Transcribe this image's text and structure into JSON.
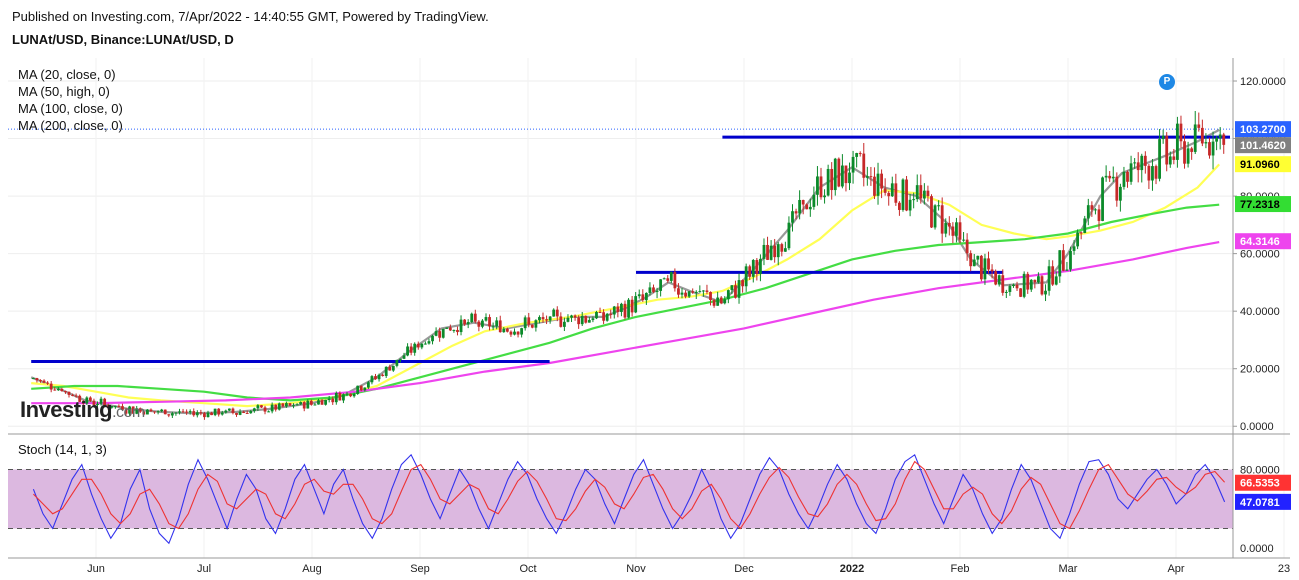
{
  "header": {
    "published": "Published on Investing.com, 7/Apr/2022 - 14:40:55 GMT, Powered by TradingView.",
    "symbol": "LUNAt/USD, Binance:LUNAt/USD, D"
  },
  "legend": {
    "ma": [
      "MA (20, close, 0)",
      "MA (50, high, 0)",
      "MA (100, close, 0)",
      "MA (200, close, 0)"
    ],
    "stoch": "Stoch (14, 1, 3)"
  },
  "logo": {
    "main": "Investing",
    "suffix": ".com"
  },
  "badge": {
    "label": "P"
  },
  "chart_data": [
    {
      "type": "candlestick",
      "x_months": [
        "Jun",
        "Jul",
        "Aug",
        "Sep",
        "Oct",
        "Nov",
        "Dec",
        "2022",
        "Feb",
        "Mar",
        "Apr",
        "23"
      ],
      "y_ticks": [
        "120.0000",
        "100.0000",
        "80.0000",
        "60.0000",
        "40.0000",
        "20.0000",
        "0.0000"
      ],
      "ylim": [
        -2,
        128
      ],
      "price_labels": [
        {
          "text": "103.2700",
          "value": 103.27,
          "color": "#2962ff"
        },
        {
          "text": "101.4620",
          "value": 101.462,
          "color": "#808080"
        },
        {
          "text": "91.0960",
          "value": 91.096,
          "color": "#ffff33"
        },
        {
          "text": "77.2318",
          "value": 77.2318,
          "color": "#33dd33"
        },
        {
          "text": "64.3146",
          "value": 64.3146,
          "color": "#ee44ee"
        }
      ],
      "last_price": 103.27,
      "colors": {
        "up": "#0b8a2a",
        "down": "#c62828",
        "trendline": "#0000cc"
      },
      "trendlines": [
        {
          "from": [
            -0.6,
            22.5
          ],
          "to": [
            4.2,
            22.5
          ]
        },
        {
          "from": [
            5.0,
            53.5
          ],
          "to": [
            8.4,
            53.5
          ]
        },
        {
          "from": [
            5.8,
            100.5
          ],
          "to": [
            10.5,
            100.5
          ]
        }
      ],
      "series": [
        {
          "name": "MA (20, close, 0)",
          "color": "#999999",
          "points": [
            [
              -0.6,
              17
            ],
            [
              -0.4,
              14
            ],
            [
              -0.1,
              9
            ],
            [
              0.3,
              6
            ],
            [
              0.6,
              5
            ],
            [
              0.9,
              4.5
            ],
            [
              1.3,
              5
            ],
            [
              1.6,
              6
            ],
            [
              2.0,
              8
            ],
            [
              2.3,
              11
            ],
            [
              2.6,
              17
            ],
            [
              2.9,
              26
            ],
            [
              3.2,
              34
            ],
            [
              3.5,
              36
            ],
            [
              3.8,
              34
            ],
            [
              4.1,
              36
            ],
            [
              4.4,
              38
            ],
            [
              4.7,
              38
            ],
            [
              4.9,
              41
            ],
            [
              5.1,
              45
            ],
            [
              5.3,
              50
            ],
            [
              5.5,
              47
            ],
            [
              5.8,
              43
            ],
            [
              6.1,
              55
            ],
            [
              6.4,
              68
            ],
            [
              6.7,
              83
            ],
            [
              7.0,
              90
            ],
            [
              7.3,
              83
            ],
            [
              7.6,
              80
            ],
            [
              7.9,
              70
            ],
            [
              8.1,
              58
            ],
            [
              8.4,
              49
            ],
            [
              8.8,
              50
            ],
            [
              9.0,
              60
            ],
            [
              9.3,
              80
            ],
            [
              9.5,
              88
            ],
            [
              9.7,
              91
            ],
            [
              9.9,
              94
            ],
            [
              10.2,
              99
            ],
            [
              10.4,
              103
            ]
          ]
        },
        {
          "name": "MA (50, high, 0)",
          "color": "#ffff55",
          "points": [
            [
              -0.6,
              15
            ],
            [
              -0.3,
              14
            ],
            [
              0.0,
              12
            ],
            [
              0.3,
              10
            ],
            [
              0.6,
              9
            ],
            [
              1.0,
              8
            ],
            [
              1.4,
              7
            ],
            [
              1.8,
              8
            ],
            [
              2.2,
              10
            ],
            [
              2.6,
              14
            ],
            [
              3.0,
              22
            ],
            [
              3.3,
              28
            ],
            [
              3.6,
              33
            ],
            [
              4.0,
              36
            ],
            [
              4.4,
              38
            ],
            [
              4.8,
              41
            ],
            [
              5.2,
              44
            ],
            [
              5.5,
              45
            ],
            [
              5.8,
              47
            ],
            [
              6.1,
              52
            ],
            [
              6.4,
              58
            ],
            [
              6.7,
              65
            ],
            [
              7.0,
              75
            ],
            [
              7.3,
              82
            ],
            [
              7.6,
              81
            ],
            [
              7.9,
              77
            ],
            [
              8.2,
              70
            ],
            [
              8.5,
              67
            ],
            [
              8.8,
              65
            ],
            [
              9.0,
              66
            ],
            [
              9.3,
              68
            ],
            [
              9.6,
              71
            ],
            [
              9.9,
              76
            ],
            [
              10.2,
              83
            ],
            [
              10.4,
              91
            ]
          ]
        },
        {
          "name": "MA (100, close, 0)",
          "color": "#44dd44",
          "points": [
            [
              -0.6,
              13
            ],
            [
              -0.2,
              14
            ],
            [
              0.2,
              14
            ],
            [
              0.6,
              13
            ],
            [
              1.0,
              12
            ],
            [
              1.4,
              10
            ],
            [
              1.8,
              9
            ],
            [
              2.2,
              10
            ],
            [
              2.6,
              13
            ],
            [
              3.0,
              17
            ],
            [
              3.4,
              21
            ],
            [
              3.8,
              25
            ],
            [
              4.2,
              29
            ],
            [
              4.6,
              34
            ],
            [
              5.0,
              38
            ],
            [
              5.4,
              41
            ],
            [
              5.8,
              44
            ],
            [
              6.2,
              48
            ],
            [
              6.6,
              53
            ],
            [
              7.0,
              58
            ],
            [
              7.4,
              61
            ],
            [
              7.8,
              63
            ],
            [
              8.2,
              64
            ],
            [
              8.6,
              65
            ],
            [
              9.0,
              67
            ],
            [
              9.4,
              71
            ],
            [
              9.8,
              74
            ],
            [
              10.1,
              76
            ],
            [
              10.4,
              77
            ]
          ]
        },
        {
          "name": "MA (200, close, 0)",
          "color": "#ee44ee",
          "points": [
            [
              -0.6,
              8
            ],
            [
              0.0,
              8
            ],
            [
              0.6,
              8.5
            ],
            [
              1.2,
              9
            ],
            [
              1.8,
              10
            ],
            [
              2.4,
              12
            ],
            [
              3.0,
              15
            ],
            [
              3.6,
              19
            ],
            [
              4.2,
              22
            ],
            [
              4.8,
              26
            ],
            [
              5.4,
              30
            ],
            [
              6.0,
              34
            ],
            [
              6.6,
              39
            ],
            [
              7.2,
              44
            ],
            [
              7.8,
              48
            ],
            [
              8.4,
              51
            ],
            [
              9.0,
              54
            ],
            [
              9.6,
              58
            ],
            [
              10.1,
              62
            ],
            [
              10.4,
              64
            ]
          ]
        }
      ]
    },
    {
      "type": "line",
      "title": "Stoch (14, 1, 3)",
      "y_ticks": [
        "80.0000",
        "0.0000"
      ],
      "ylim": [
        -10,
        110
      ],
      "bands": [
        80,
        20
      ],
      "band_fill": "#dcb8e0",
      "value_labels": [
        {
          "text": "66.5353",
          "value": 66.5353,
          "color": "#ff3333"
        },
        {
          "text": "47.0781",
          "value": 47.0781,
          "color": "#2222ff"
        }
      ],
      "series": [
        {
          "name": "%K",
          "color": "#3333ee",
          "values": [
            60,
            35,
            20,
            45,
            70,
            85,
            55,
            30,
            10,
            25,
            60,
            80,
            40,
            15,
            5,
            30,
            65,
            90,
            70,
            45,
            20,
            50,
            75,
            60,
            30,
            15,
            40,
            70,
            85,
            60,
            35,
            65,
            80,
            50,
            25,
            10,
            30,
            60,
            85,
            95,
            75,
            50,
            30,
            55,
            80,
            65,
            40,
            20,
            45,
            70,
            88,
            75,
            50,
            30,
            15,
            35,
            60,
            80,
            70,
            45,
            25,
            50,
            75,
            90,
            65,
            40,
            20,
            35,
            55,
            80,
            60,
            30,
            10,
            25,
            50,
            75,
            92,
            80,
            55,
            35,
            20,
            40,
            65,
            85,
            70,
            45,
            25,
            15,
            40,
            70,
            88,
            95,
            70,
            45,
            25,
            50,
            75,
            60,
            35,
            15,
            30,
            60,
            85,
            70,
            45,
            20,
            10,
            35,
            65,
            88,
            90,
            75,
            50,
            40,
            55,
            70,
            80,
            65,
            45,
            55,
            75,
            85,
            70,
            47
          ]
        },
        {
          "name": "%D",
          "color": "#ee3333",
          "values": [
            55,
            45,
            35,
            40,
            55,
            70,
            70,
            55,
            35,
            25,
            35,
            55,
            60,
            45,
            25,
            20,
            35,
            60,
            75,
            68,
            45,
            40,
            50,
            60,
            55,
            35,
            30,
            45,
            65,
            70,
            58,
            55,
            65,
            65,
            50,
            30,
            25,
            35,
            58,
            80,
            85,
            70,
            50,
            45,
            55,
            65,
            60,
            40,
            35,
            50,
            68,
            78,
            68,
            50,
            30,
            28,
            40,
            58,
            70,
            62,
            45,
            40,
            55,
            72,
            75,
            60,
            40,
            30,
            40,
            58,
            65,
            50,
            30,
            20,
            35,
            55,
            72,
            82,
            72,
            52,
            35,
            32,
            45,
            65,
            75,
            65,
            45,
            28,
            30,
            45,
            70,
            88,
            80,
            60,
            40,
            40,
            55,
            62,
            55,
            35,
            25,
            38,
            60,
            72,
            65,
            45,
            25,
            20,
            38,
            60,
            80,
            85,
            70,
            55,
            48,
            58,
            70,
            72,
            62,
            55,
            62,
            75,
            78,
            67
          ]
        }
      ]
    }
  ]
}
